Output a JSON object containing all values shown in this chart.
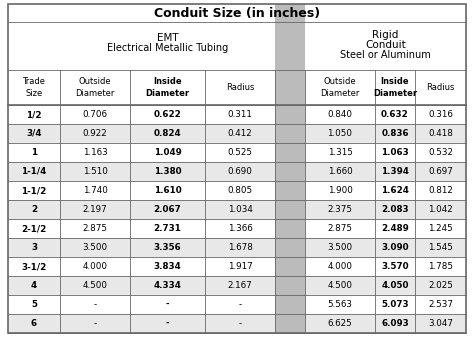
{
  "title": "Conduit Size (in inches)",
  "emt_header1": "EMT",
  "emt_header2": "Electrical Metallic Tubing",
  "rigid_header1": "Rigid",
  "rigid_header2": "Conduit",
  "rigid_header3": "Steel or Aluminum",
  "trade_sizes": [
    "1/2",
    "3/4",
    "1",
    "1-1/4",
    "1-1/2",
    "2",
    "2-1/2",
    "3",
    "3-1/2",
    "4",
    "5",
    "6"
  ],
  "emt_outside": [
    "0.706",
    "0.922",
    "1.163",
    "1.510",
    "1.740",
    "2.197",
    "2.875",
    "3.500",
    "4.000",
    "4.500",
    "-",
    "-"
  ],
  "emt_inside": [
    "0.622",
    "0.824",
    "1.049",
    "1.380",
    "1.610",
    "2.067",
    "2.731",
    "3.356",
    "3.834",
    "4.334",
    "-",
    "-"
  ],
  "emt_radius": [
    "0.311",
    "0.412",
    "0.525",
    "0.690",
    "0.805",
    "1.034",
    "1.366",
    "1.678",
    "1.917",
    "2.167",
    "-",
    "-"
  ],
  "rigid_outside": [
    "0.840",
    "1.050",
    "1.315",
    "1.660",
    "1.900",
    "2.375",
    "2.875",
    "3.500",
    "4.000",
    "4.500",
    "5.563",
    "6.625"
  ],
  "rigid_inside": [
    "0.632",
    "0.836",
    "1.063",
    "1.394",
    "1.624",
    "2.083",
    "2.489",
    "3.090",
    "3.570",
    "4.050",
    "5.073",
    "6.093"
  ],
  "rigid_radius": [
    "0.316",
    "0.418",
    "0.532",
    "0.697",
    "0.812",
    "1.042",
    "1.245",
    "1.545",
    "1.785",
    "2.025",
    "2.537",
    "3.047"
  ],
  "bg_color": "#ffffff",
  "border_color": "#666666",
  "text_color": "#000000",
  "row_alt_color": "#e8e8e8",
  "gap_color": "#bbbbbb"
}
